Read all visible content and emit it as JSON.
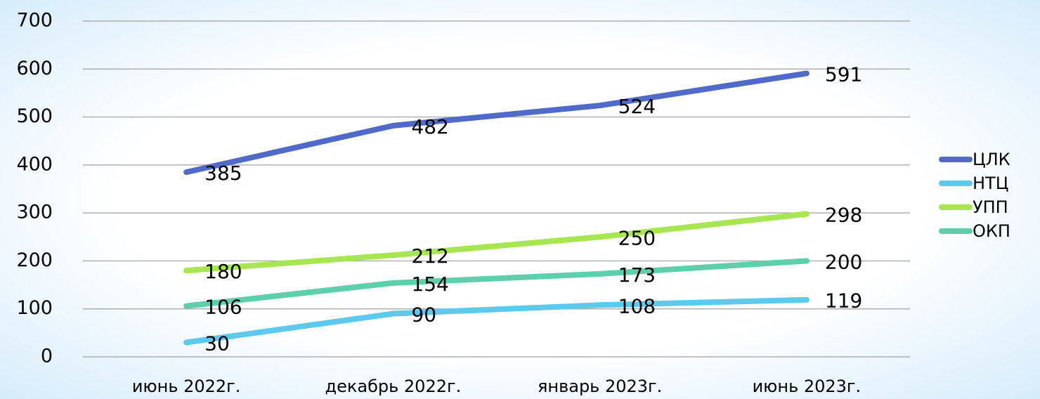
{
  "chart_data": {
    "type": "line",
    "categories": [
      "июнь 2022г.",
      "декабрь 2022г.",
      "январь 2023г.",
      "июнь 2023г."
    ],
    "series": [
      {
        "name": "ЦЛК",
        "color": "#4f6ac8",
        "values": [
          385,
          482,
          524,
          591
        ]
      },
      {
        "name": "НТЦ",
        "color": "#5cc9ef",
        "values": [
          30,
          90,
          108,
          119
        ]
      },
      {
        "name": "УПП",
        "color": "#a6e650",
        "values": [
          180,
          212,
          250,
          298
        ]
      },
      {
        "name": "ОКП",
        "color": "#5dcfaa",
        "values": [
          106,
          154,
          173,
          200
        ]
      }
    ],
    "ylim": [
      0,
      700
    ],
    "yticks": [
      0,
      100,
      200,
      300,
      400,
      500,
      600,
      700
    ],
    "grid": true,
    "legend": "right",
    "data_labels": true
  }
}
